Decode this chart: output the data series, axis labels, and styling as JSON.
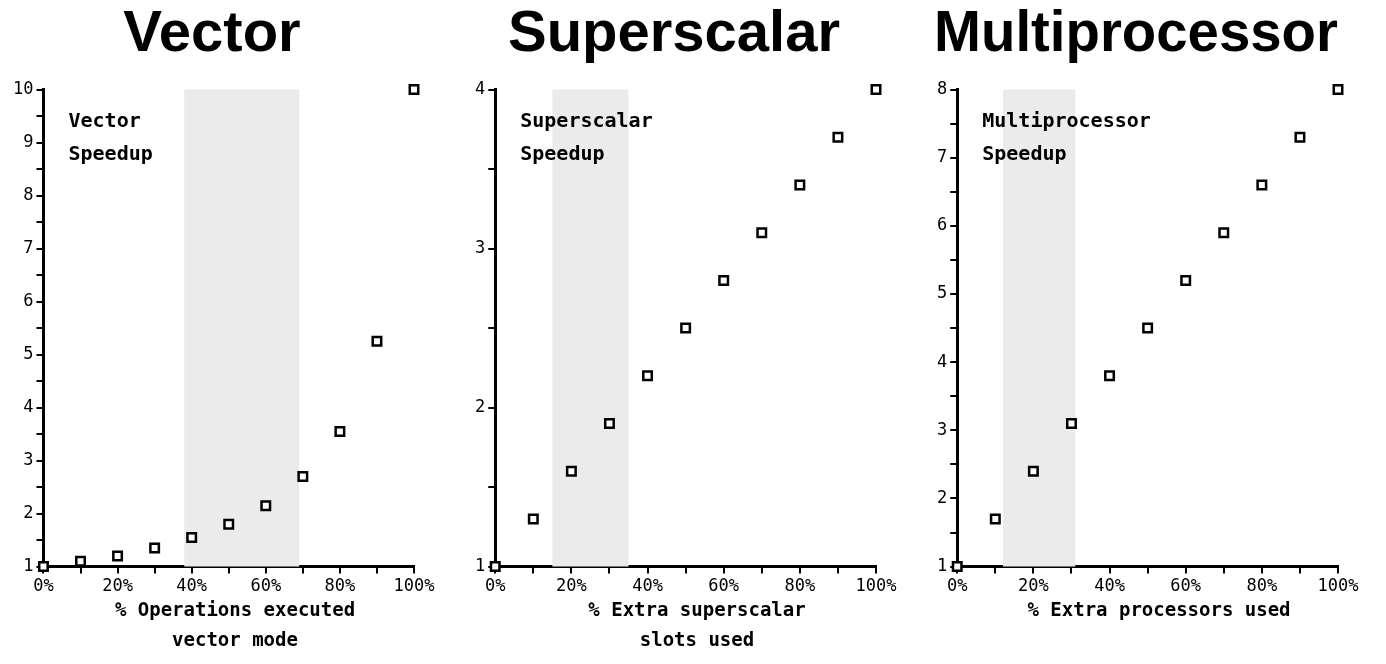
{
  "chart_data": [
    {
      "type": "scatter",
      "title": "Vector",
      "ylabel": "Vector Speedup",
      "xlabel": "% Operations executed vector mode",
      "x": [
        0,
        10,
        20,
        30,
        40,
        50,
        60,
        70,
        80,
        90,
        100
      ],
      "series": [
        {
          "color": "#000000",
          "values": [
            1,
            1.1,
            1.2,
            1.35,
            1.55,
            1.8,
            2.15,
            2.7,
            3.55,
            5.25,
            10
          ]
        }
      ],
      "xlim": [
        0,
        100
      ],
      "xticks": [
        {
          "value": 0,
          "label": "0%"
        },
        {
          "value": 10,
          "label": null
        },
        {
          "value": 20,
          "label": "20%"
        },
        {
          "value": 30,
          "label": null
        },
        {
          "value": 40,
          "label": "40%"
        },
        {
          "value": 50,
          "label": null
        },
        {
          "value": 60,
          "label": "60%"
        },
        {
          "value": 70,
          "label": null
        },
        {
          "value": 80,
          "label": "80%"
        },
        {
          "value": 90,
          "label": null
        },
        {
          "value": 100,
          "label": "100%"
        }
      ],
      "ylim": [
        1,
        10
      ],
      "yticks": [
        1,
        {
          "value": 1.5,
          "label": null
        },
        2,
        {
          "value": 2.5,
          "label": null
        },
        3,
        {
          "value": 3.5,
          "label": null
        },
        4,
        {
          "value": 4.5,
          "label": null
        },
        5,
        {
          "value": 5.5,
          "label": null
        },
        6,
        {
          "value": 6.5,
          "label": null
        },
        7,
        {
          "value": 7.5,
          "label": null
        },
        8,
        {
          "value": 8.5,
          "label": null
        },
        9,
        {
          "value": 9.5,
          "label": null
        },
        10
      ],
      "bands": [
        {
          "axis": "x",
          "from": 38,
          "to": 69,
          "color": "#ebebeb"
        }
      ],
      "grid": false,
      "legend": false,
      "marker": "square"
    },
    {
      "type": "scatter",
      "title": "Superscalar",
      "ylabel": "Superscalar Speedup",
      "xlabel": "% Extra superscalar slots used",
      "x": [
        0,
        10,
        20,
        30,
        40,
        50,
        60,
        70,
        80,
        90,
        100
      ],
      "series": [
        {
          "color": "#000000",
          "values": [
            1,
            1.3,
            1.6,
            1.9,
            2.2,
            2.5,
            2.8,
            3.1,
            3.4,
            3.7,
            4
          ]
        }
      ],
      "xlim": [
        0,
        100
      ],
      "xticks": [
        {
          "value": 0,
          "label": "0%"
        },
        {
          "value": 10,
          "label": null
        },
        {
          "value": 20,
          "label": "20%"
        },
        {
          "value": 30,
          "label": null
        },
        {
          "value": 40,
          "label": "40%"
        },
        {
          "value": 50,
          "label": null
        },
        {
          "value": 60,
          "label": "60%"
        },
        {
          "value": 70,
          "label": null
        },
        {
          "value": 80,
          "label": "80%"
        },
        {
          "value": 90,
          "label": null
        },
        {
          "value": 100,
          "label": "100%"
        }
      ],
      "ylim": [
        1,
        4
      ],
      "yticks": [
        1,
        {
          "value": 1.5,
          "label": null
        },
        2,
        {
          "value": 2.5,
          "label": null
        },
        3,
        {
          "value": 3.5,
          "label": null
        },
        4
      ],
      "bands": [
        {
          "axis": "x",
          "from": 15,
          "to": 35,
          "color": "#ebebeb"
        }
      ],
      "grid": false,
      "legend": false,
      "marker": "square"
    },
    {
      "type": "scatter",
      "title": "Multiprocessor",
      "ylabel": "Multiprocessor Speedup",
      "xlabel": "% Extra processors used",
      "x": [
        0,
        10,
        20,
        30,
        40,
        50,
        60,
        70,
        80,
        90,
        100
      ],
      "series": [
        {
          "color": "#000000",
          "values": [
            1,
            1.7,
            2.4,
            3.1,
            3.8,
            4.5,
            5.2,
            5.9,
            6.6,
            7.3,
            8
          ]
        }
      ],
      "xlim": [
        0,
        100
      ],
      "xticks": [
        {
          "value": 0,
          "label": "0%"
        },
        {
          "value": 10,
          "label": null
        },
        {
          "value": 20,
          "label": "20%"
        },
        {
          "value": 30,
          "label": null
        },
        {
          "value": 40,
          "label": "40%"
        },
        {
          "value": 50,
          "label": null
        },
        {
          "value": 60,
          "label": "60%"
        },
        {
          "value": 70,
          "label": null
        },
        {
          "value": 80,
          "label": "80%"
        },
        {
          "value": 90,
          "label": null
        },
        {
          "value": 100,
          "label": "100%"
        }
      ],
      "ylim": [
        1,
        8
      ],
      "yticks": [
        1,
        {
          "value": 1.5,
          "label": null
        },
        2,
        {
          "value": 2.5,
          "label": null
        },
        3,
        {
          "value": 3.5,
          "label": null
        },
        4,
        {
          "value": 4.5,
          "label": null
        },
        5,
        {
          "value": 5.5,
          "label": null
        },
        6,
        {
          "value": 6.5,
          "label": null
        },
        7,
        {
          "value": 7.5,
          "label": null
        },
        8
      ],
      "bands": [
        {
          "axis": "x",
          "from": 12,
          "to": 31,
          "color": "#ebebeb"
        }
      ],
      "grid": false,
      "legend": false,
      "marker": "square"
    }
  ]
}
